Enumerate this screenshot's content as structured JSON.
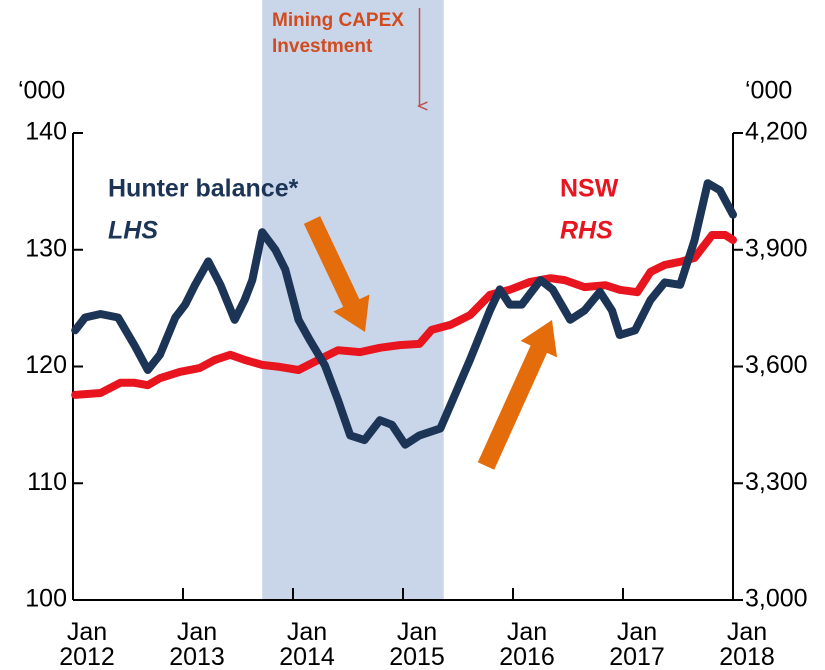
{
  "chart_data": {
    "type": "line",
    "xlim": [
      2012,
      2018
    ],
    "xticks": [
      {
        "value": 2012,
        "label": "Jan 2012"
      },
      {
        "value": 2013,
        "label": "Jan 2013"
      },
      {
        "value": 2014,
        "label": "Jan 2014"
      },
      {
        "value": 2015,
        "label": "Jan 2015"
      },
      {
        "value": 2016,
        "label": "Jan 2016"
      },
      {
        "value": 2017,
        "label": "Jan 2017"
      },
      {
        "value": 2018,
        "label": "Jan 2018"
      }
    ],
    "ylim": [
      100,
      140
    ],
    "yticks": [
      100,
      110,
      120,
      130,
      140
    ],
    "y2lim": [
      3000,
      4200
    ],
    "y2ticks": [
      {
        "value": 3000,
        "label": "3,000"
      },
      {
        "value": 3300,
        "label": "3,300"
      },
      {
        "value": 3600,
        "label": "3,600"
      },
      {
        "value": 3900,
        "label": "3,900"
      },
      {
        "value": 4200,
        "label": "4,200"
      }
    ],
    "ylabel": "‘000",
    "y2label": "‘000",
    "shaded_period": [
      2013.72,
      2015.37
    ],
    "shade_color": "#c9d6ea",
    "annotation": {
      "text": "Mining CAPEX Investment",
      "x": 2015.15,
      "color": "#d24b1f"
    },
    "series": [
      {
        "name": "Hunter balance*",
        "side_label": "LHS",
        "color": "#1c3557",
        "x": [
          2012.02,
          2012.11,
          2012.25,
          2012.41,
          2012.56,
          2012.68,
          2012.79,
          2012.93,
          2013.02,
          2013.11,
          2013.23,
          2013.34,
          2013.47,
          2013.56,
          2013.63,
          2013.72,
          2013.84,
          2013.93,
          2014.05,
          2014.15,
          2014.29,
          2014.41,
          2014.52,
          2014.65,
          2014.79,
          2014.9,
          2015.02,
          2015.15,
          2015.34,
          2015.45,
          2015.61,
          2015.79,
          2015.88,
          2015.97,
          2016.08,
          2016.25,
          2016.36,
          2016.52,
          2016.65,
          2016.79,
          2016.9,
          2016.97,
          2017.11,
          2017.25,
          2017.38,
          2017.52,
          2017.65,
          2017.77,
          2017.88,
          2018
        ],
        "values": [
          123.1,
          124.2,
          124.5,
          124.2,
          121.8,
          119.7,
          121,
          124.2,
          125.3,
          127,
          129,
          127,
          124,
          125.7,
          127.4,
          131.5,
          130,
          128.3,
          124,
          122.3,
          120.1,
          117.1,
          114.1,
          113.7,
          115.4,
          115,
          113.3,
          114.1,
          114.7,
          117.1,
          120.6,
          124.8,
          126.6,
          125.3,
          125.3,
          127.4,
          126.6,
          124,
          124.8,
          126.4,
          124.8,
          122.7,
          123.1,
          125.7,
          127.2,
          127,
          130.8,
          135.7,
          135.1,
          133
        ]
      },
      {
        "name": "NSW",
        "side_label": "RHS",
        "color": "#e8141e",
        "axis": "y2",
        "x": [
          2012.02,
          2012.25,
          2012.43,
          2012.56,
          2012.68,
          2012.79,
          2012.97,
          2013.15,
          2013.29,
          2013.43,
          2013.56,
          2013.72,
          2013.88,
          2014.05,
          2014.23,
          2014.41,
          2014.61,
          2014.79,
          2014.97,
          2015.15,
          2015.26,
          2015.43,
          2015.61,
          2015.79,
          2015.97,
          2016.15,
          2016.34,
          2016.47,
          2016.65,
          2016.84,
          2016.97,
          2017.13,
          2017.25,
          2017.38,
          2017.52,
          2017.65,
          2017.81,
          2017.93,
          2018
        ],
        "values": [
          3527,
          3532,
          3558,
          3558,
          3552,
          3570,
          3586,
          3596,
          3617,
          3630,
          3617,
          3604,
          3599,
          3591,
          3617,
          3642,
          3637,
          3648,
          3655,
          3658,
          3694,
          3707,
          3732,
          3784,
          3797,
          3817,
          3827,
          3822,
          3804,
          3809,
          3797,
          3791,
          3843,
          3861,
          3869,
          3879,
          3938,
          3938,
          3925
        ]
      }
    ]
  }
}
